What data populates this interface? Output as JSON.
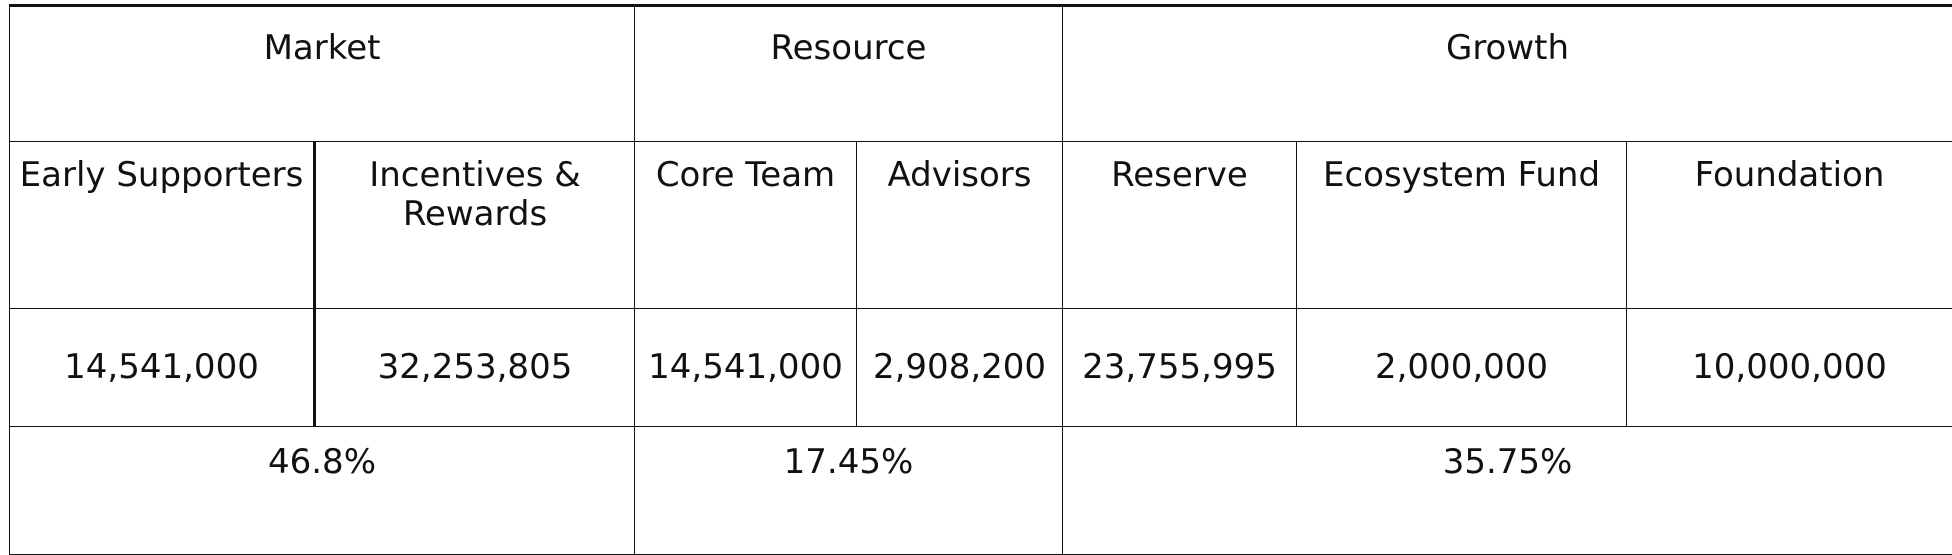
{
  "table": {
    "groups": [
      {
        "label": "Market",
        "span": 2
      },
      {
        "label": "Resource",
        "span": 2
      },
      {
        "label": "Growth",
        "span": 3
      }
    ],
    "categories": [
      "Early Supporters",
      "Incentives & Rewards",
      "Core Team",
      "Advisors",
      "Reserve",
      "Ecosystem Fund",
      "Foundation"
    ],
    "amounts": [
      "14,541,000",
      "32,253,805",
      "14,541,000",
      "2,908,200",
      "23,755,995",
      "2,000,000",
      "10,000,000"
    ],
    "percentages": [
      "46.8%",
      "17.45%",
      "35.75%"
    ]
  }
}
